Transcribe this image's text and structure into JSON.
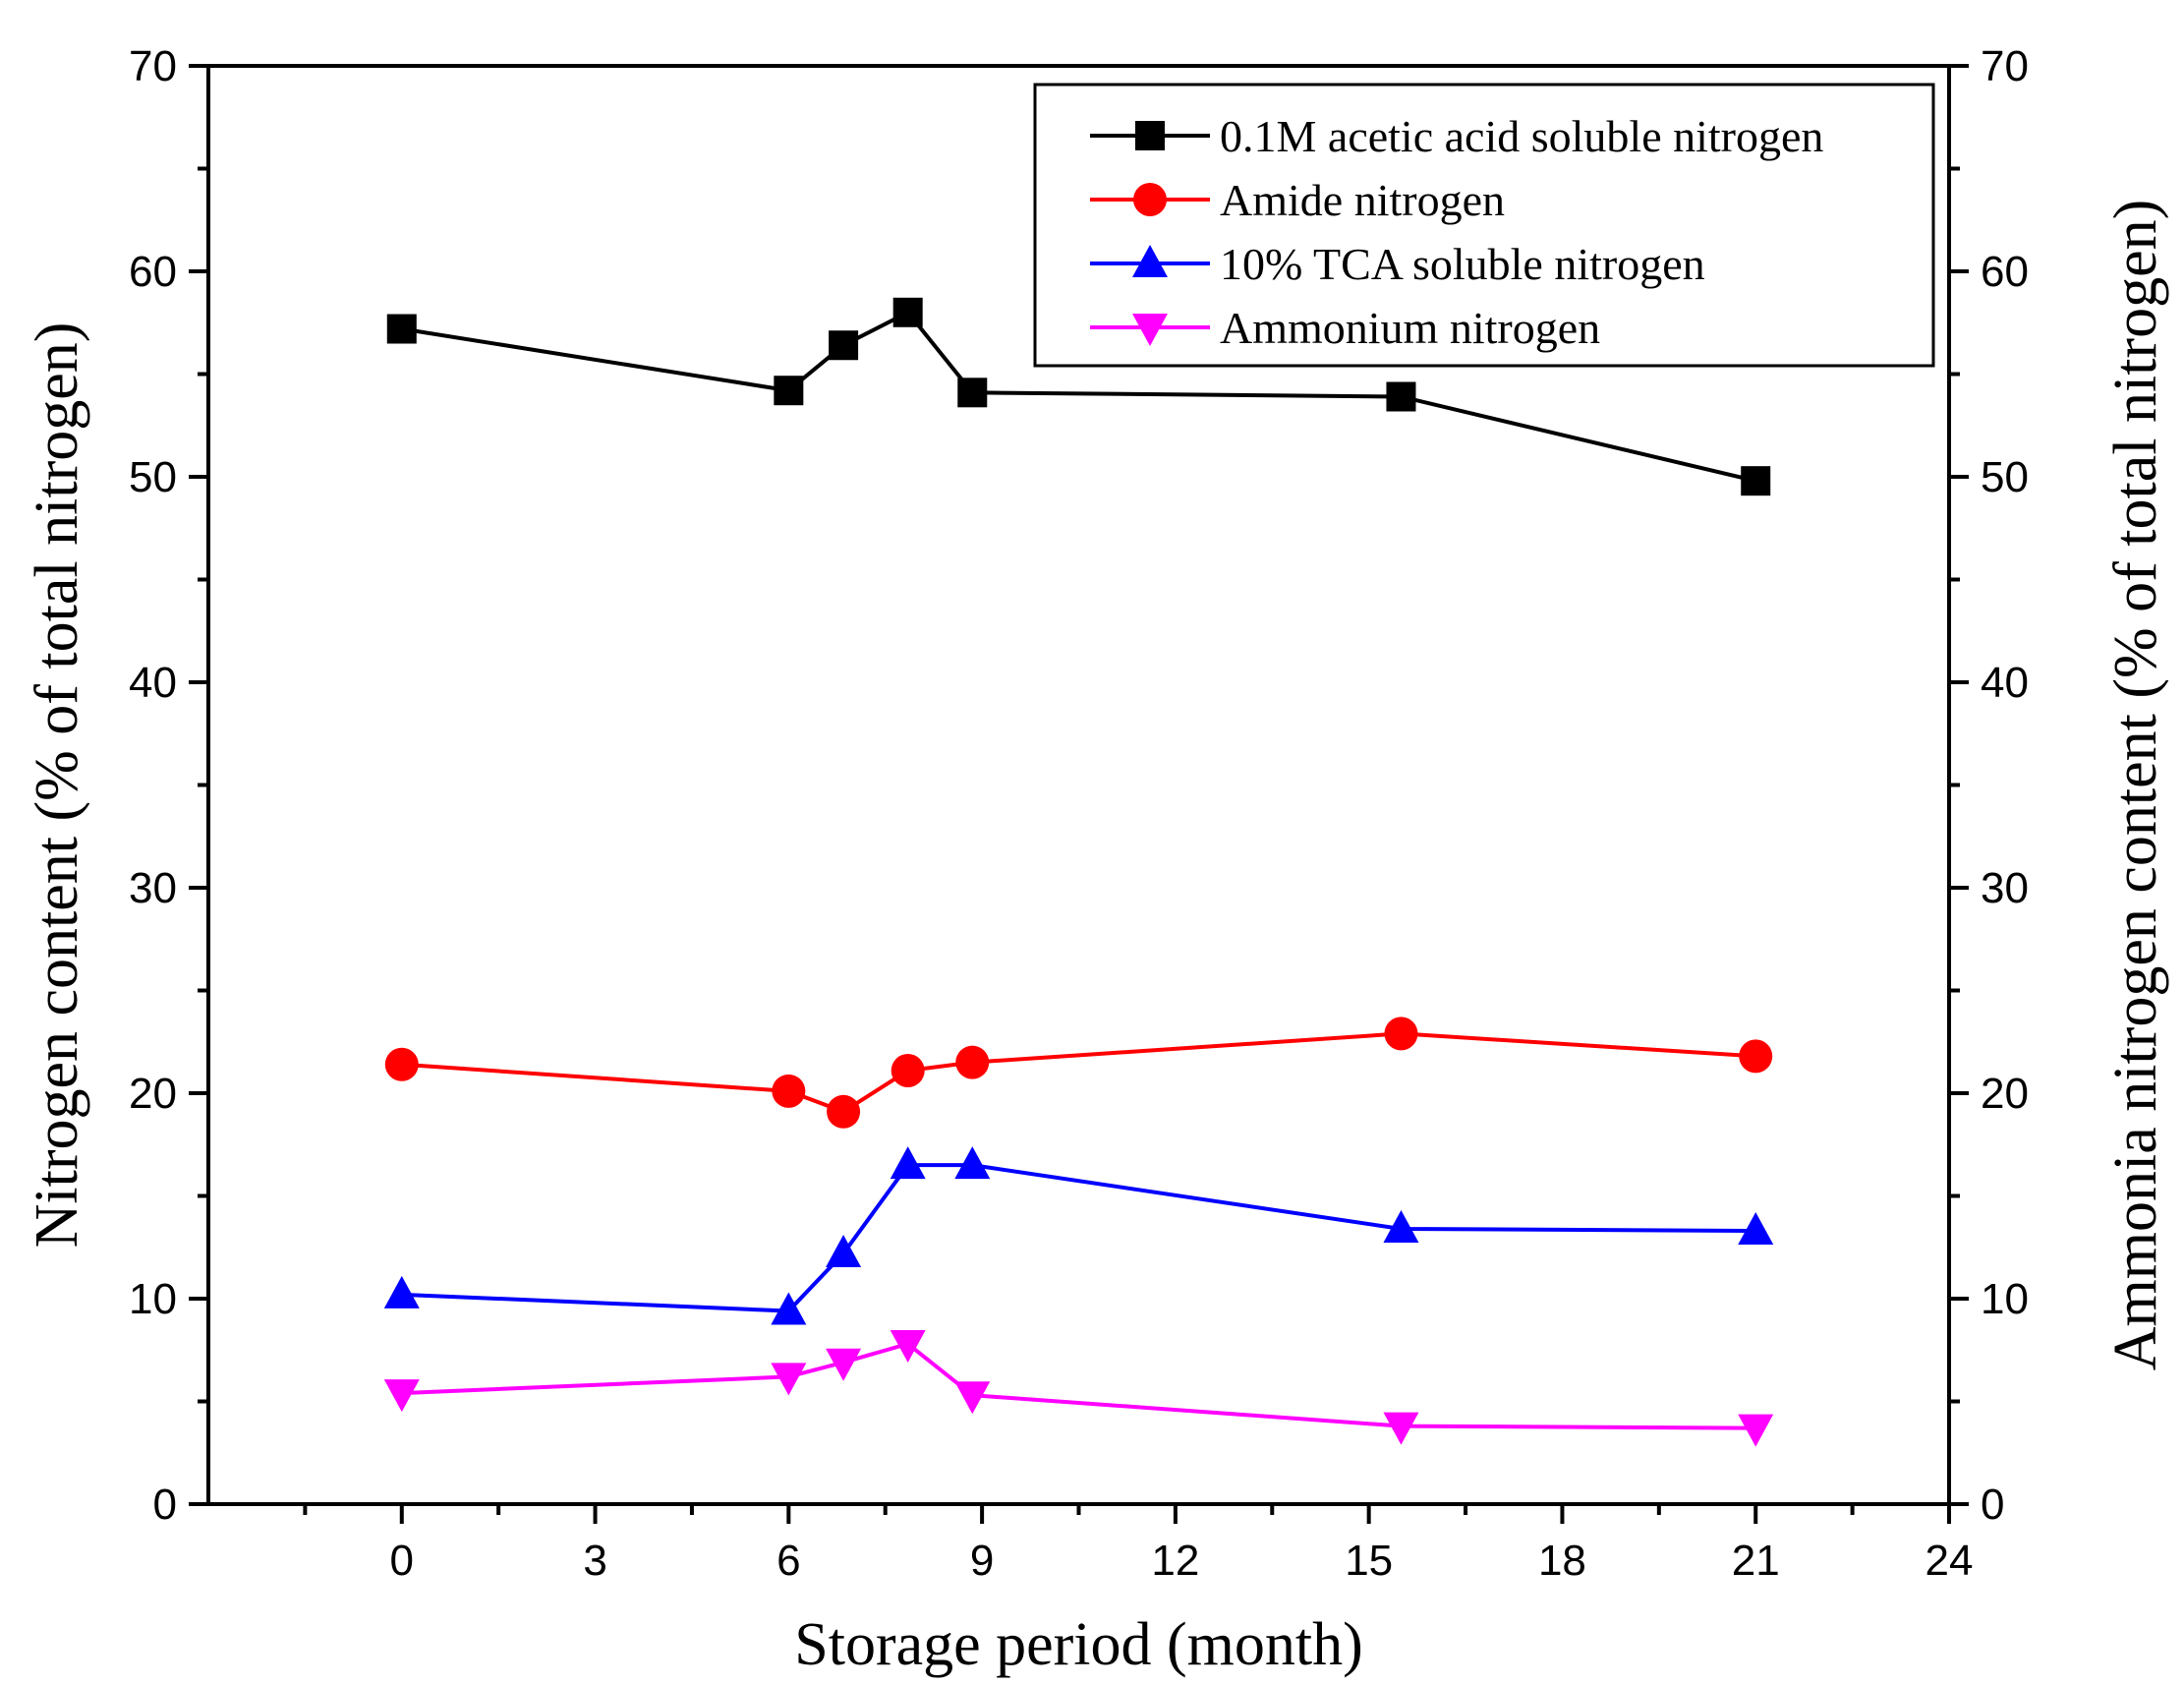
{
  "chart_data": {
    "type": "line",
    "xlabel": "Storage period (month)",
    "ylabel": "Nitrogen content (% of total nitrogen)",
    "y2label": "Ammonia nitrogen content (% of total nitrogen)",
    "xlim": [
      -3,
      24
    ],
    "ylim": [
      0,
      70
    ],
    "y2lim": [
      0,
      70
    ],
    "xticks": [
      "0",
      "3",
      "6",
      "9",
      "12",
      "15",
      "18",
      "21",
      "24"
    ],
    "yticks": [
      "0",
      "10",
      "20",
      "30",
      "40",
      "50",
      "60",
      "70"
    ],
    "y2ticks": [
      "0",
      "10",
      "20",
      "30",
      "40",
      "50",
      "60",
      "70"
    ],
    "legend_position": "top-right",
    "grid": false,
    "x": [
      0,
      6,
      6.85,
      7.85,
      8.85,
      15.5,
      21
    ],
    "series": [
      {
        "name": "0.1M acetic acid soluble nitrogen",
        "color": "#000000",
        "marker": "square",
        "values": [
          57.2,
          54.2,
          56.4,
          58.0,
          54.1,
          53.9,
          49.8
        ]
      },
      {
        "name": "Amide nitrogen",
        "color": "#ff0000",
        "marker": "circle",
        "values": [
          21.4,
          20.1,
          19.1,
          21.1,
          21.5,
          22.9,
          21.8
        ]
      },
      {
        "name": "10% TCA soluble nitrogen",
        "color": "#0000ff",
        "marker": "triangle-up",
        "values": [
          10.2,
          9.4,
          12.2,
          16.5,
          16.5,
          13.4,
          13.3
        ]
      },
      {
        "name": "Ammonium nitrogen",
        "color": "#ff00ff",
        "marker": "triangle-down",
        "values": [
          5.4,
          6.2,
          6.9,
          7.8,
          5.3,
          3.8,
          3.7
        ]
      }
    ]
  }
}
